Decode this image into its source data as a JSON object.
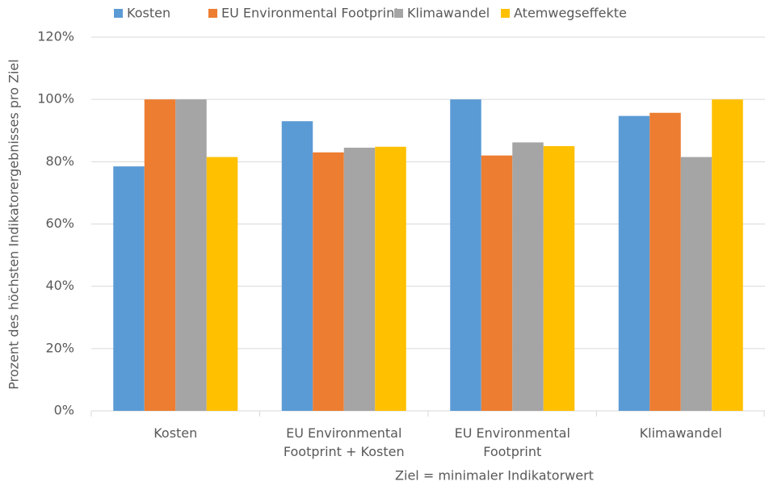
{
  "chart_data": {
    "type": "bar",
    "categories": [
      "Kosten",
      "EU Environmental Footprint + Kosten",
      "EU Environmental Footprint",
      "Klimawandel"
    ],
    "series": [
      {
        "name": "Kosten",
        "color": "#5b9bd5",
        "values": [
          78.5,
          93,
          100,
          94.7
        ]
      },
      {
        "name": "EU Environmental Footprint",
        "color": "#ed7d31",
        "values": [
          100,
          83,
          82,
          95.7
        ]
      },
      {
        "name": "Klimawandel",
        "color": "#a5a5a5",
        "values": [
          100,
          84.5,
          86.2,
          81.5
        ]
      },
      {
        "name": "Atemwegseffekte",
        "color": "#ffc000",
        "values": [
          81.5,
          84.8,
          85,
          100
        ]
      }
    ],
    "x_label": "Ziel = minimaler Indikatorwert",
    "y_label": "Prozent des höchsten Indikatorergebnisses pro Ziel",
    "ylim": [
      0,
      120
    ],
    "yticks": [
      {
        "value": 0,
        "label": "0%"
      },
      {
        "value": 20,
        "label": "20%"
      },
      {
        "value": 40,
        "label": "40%"
      },
      {
        "value": 60,
        "label": "60%"
      },
      {
        "value": 80,
        "label": "80%"
      },
      {
        "value": 100,
        "label": "100%"
      },
      {
        "value": 120,
        "label": "120%"
      }
    ],
    "grid": true,
    "legend": "top"
  }
}
